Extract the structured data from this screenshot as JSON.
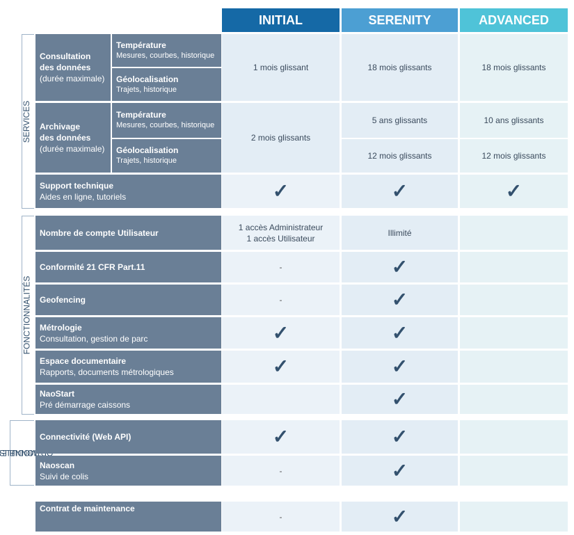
{
  "headers": [
    "INITIAL",
    "SERENITY",
    "ADVANCED"
  ],
  "header_colors": [
    "#1569a6",
    "#4c9fd3",
    "#4fc3d8"
  ],
  "sections": {
    "services": "SERVICES",
    "fonctionnalites": "FONCTIONNALITÉS",
    "modules_line1": "MODULES",
    "modules_line2": "OPTIONNELS"
  },
  "consultation": {
    "title_line1": "Consultation",
    "title_line2": "des données",
    "title_line3": "(durée maximale)",
    "temp_title": "Température",
    "temp_sub": "Mesures, courbes, historique",
    "geo_title": "Géolocalisation",
    "geo_sub": "Trajets, historique",
    "initial": "1 mois glissant",
    "serenity": "18 mois glissants",
    "advanced": "18 mois glissants"
  },
  "archivage": {
    "title_line1": "Archivage",
    "title_line2": "des données",
    "title_line3": "(durée maximale)",
    "temp_title": "Température",
    "temp_sub": "Mesures, courbes, historique",
    "geo_title": "Géolocalisation",
    "geo_sub": "Trajets, historique",
    "initial": "2 mois glissants",
    "serenity_temp": "5 ans glissants",
    "advanced_temp": "10 ans glissants",
    "serenity_geo": "12 mois glissants",
    "advanced_geo": "12 mois glissants"
  },
  "support": {
    "title": "Support technique",
    "sub": "Aides en ligne, tutoriels"
  },
  "comptes": {
    "title": "Nombre de compte Utilisateur",
    "initial_line1": "1 accès Administrateur",
    "initial_line2": "1 accès Utilisateur",
    "serenity": "Illimité"
  },
  "rows": {
    "cfr": {
      "title": "Conformité 21 CFR Part.11",
      "initial": "-"
    },
    "geofencing": {
      "title": "Geofencing",
      "initial": "-"
    },
    "metrologie": {
      "title": "Métrologie",
      "sub": "Consultation, gestion de parc"
    },
    "espace": {
      "title": "Espace documentaire",
      "sub": "Rapports, documents métrologiques"
    },
    "naostart": {
      "title": "NaoStart",
      "sub": "Pré démarrage caissons"
    },
    "connectivite": {
      "title": "Connectivité (Web API)"
    },
    "naoscan": {
      "title": "Naoscan",
      "sub": "Suivi de colis",
      "initial": "-"
    },
    "contrat": {
      "title": "Contrat de maintenance",
      "initial": "-"
    }
  },
  "check_symbol": "✓"
}
